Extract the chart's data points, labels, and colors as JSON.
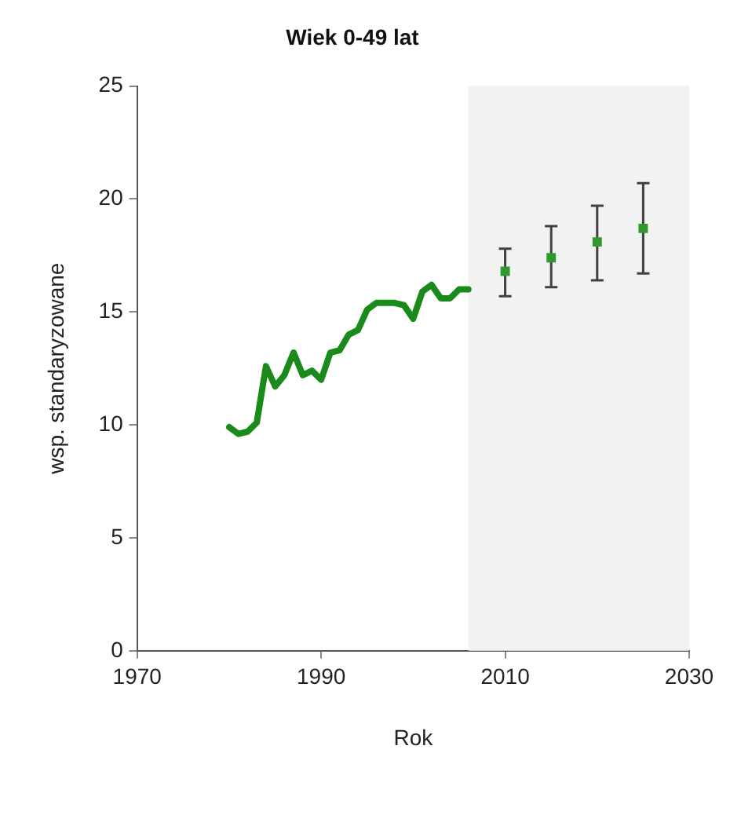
{
  "chart_data": {
    "type": "line",
    "title": "Wiek 0-49 lat",
    "xlabel": "Rok",
    "ylabel": "wsp. standaryzowane",
    "xlim": [
      1970,
      2030
    ],
    "xticks": [
      1970,
      1990,
      2010,
      2030
    ],
    "ylim": [
      0,
      25
    ],
    "yticks": [
      0,
      5,
      10,
      15,
      20,
      25
    ],
    "grid": false,
    "legend": false,
    "series": [
      {
        "color": "#1a8a1a",
        "x": [
          1980,
          1981,
          1982,
          1983,
          1984,
          1985,
          1986,
          1987,
          1988,
          1989,
          1990,
          1991,
          1992,
          1993,
          1994,
          1995,
          1996,
          1997,
          1998,
          1999,
          2000,
          2001,
          2002,
          2003,
          2004,
          2005,
          2006
        ],
        "values": [
          9.9,
          9.6,
          9.7,
          10.1,
          12.6,
          11.7,
          12.2,
          13.2,
          12.2,
          12.4,
          12.0,
          13.2,
          13.3,
          14.0,
          14.2,
          15.1,
          15.4,
          15.4,
          15.4,
          15.3,
          14.7,
          15.9,
          16.2,
          15.6,
          15.6,
          16.0,
          16.0
        ]
      },
      {
        "type": "scatter",
        "color": "#2e9a2e",
        "marker": "square",
        "x": [
          2010,
          2015,
          2020,
          2025
        ],
        "values": [
          16.8,
          17.4,
          18.1,
          18.7
        ],
        "errors": [
          [
            15.7,
            17.8
          ],
          [
            16.1,
            18.8
          ],
          [
            16.4,
            19.7
          ],
          [
            16.7,
            20.7
          ]
        ]
      }
    ],
    "bands": [
      {
        "axis": "x",
        "from": 2006,
        "to": 2030,
        "color": "#f2f2f2"
      }
    ]
  }
}
